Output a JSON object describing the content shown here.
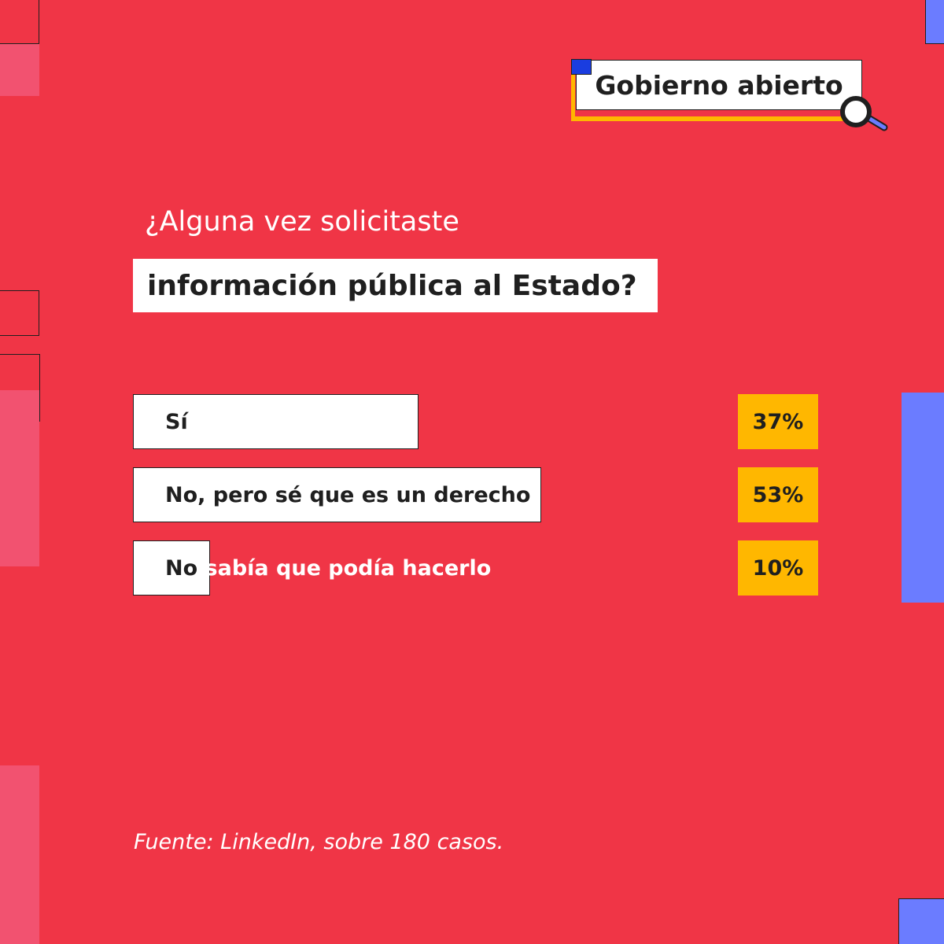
{
  "brand": {
    "label": "Gobierno abierto",
    "icon": "magnifier-icon"
  },
  "question": {
    "line1": "¿Alguna vez solicitaste",
    "line2": "información pública al Estado?"
  },
  "chart_data": {
    "type": "bar",
    "orientation": "horizontal",
    "categories": [
      "Sí",
      "No, pero sé que es un derecho",
      "No sabía que podía hacerlo"
    ],
    "values": [
      37,
      53,
      10
    ],
    "value_labels": [
      "37%",
      "53%",
      "10%"
    ],
    "label_parts": [
      {
        "first": "Sí",
        "rest": ""
      },
      {
        "first": "No, pero sé que es un derecho",
        "rest": ""
      },
      {
        "first": "No",
        "rest": " sabía que podía hacerlo"
      }
    ],
    "xlim": [
      0,
      100
    ],
    "grid": false,
    "legend": "none"
  },
  "source": "Fuente: LinkedIn, sobre 180 casos.",
  "colors": {
    "background": "#F03546",
    "bar": "#FFFFFF",
    "percent_box": "#FFB700",
    "accent_blue": "#6B7CFF",
    "accent_pink": "#F25270"
  }
}
